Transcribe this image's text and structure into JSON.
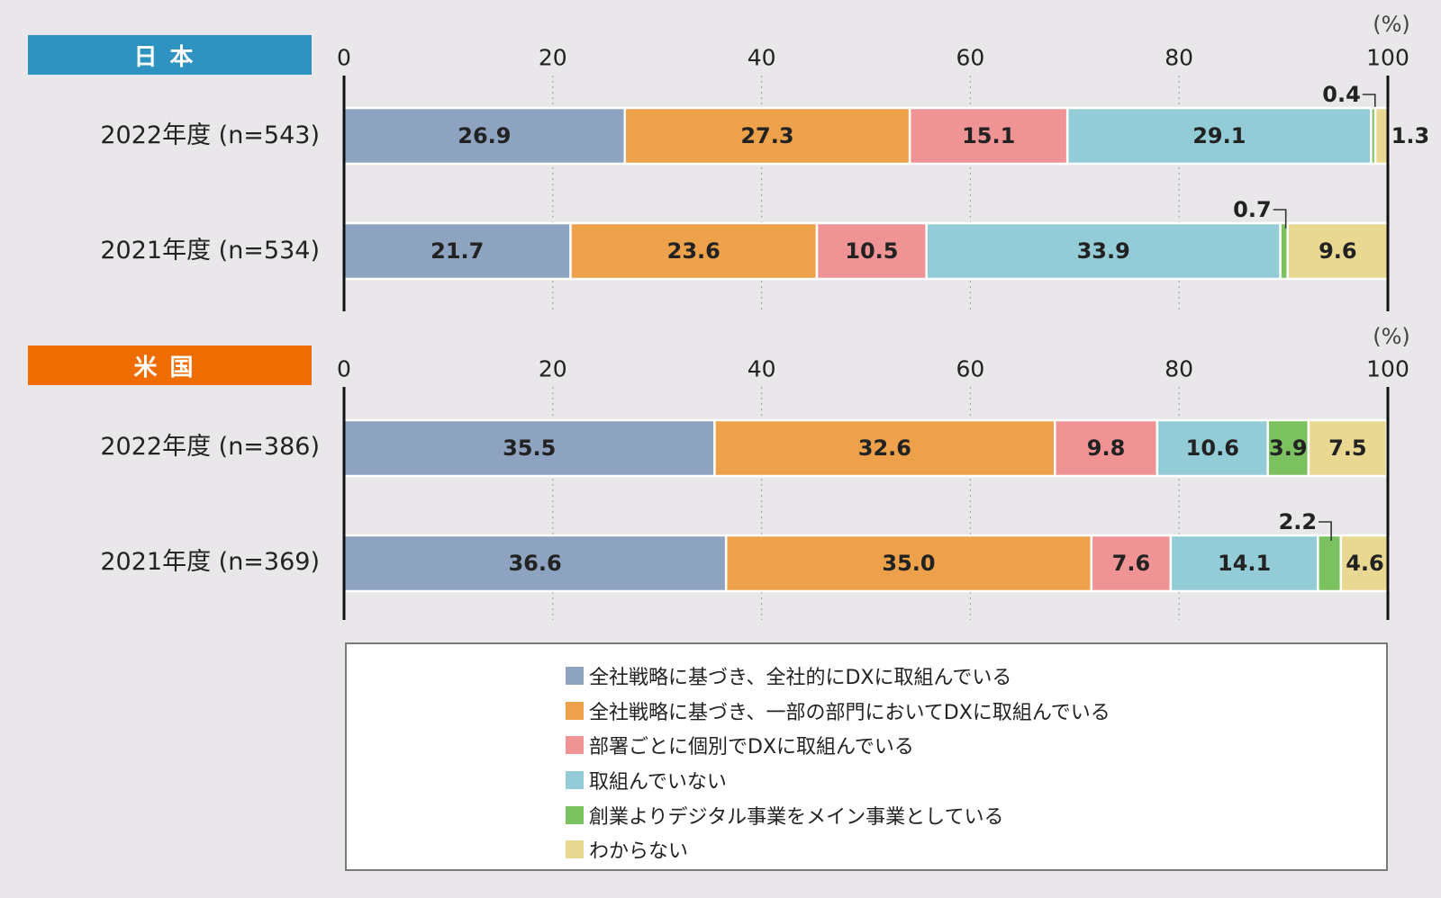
{
  "unit_label": "(%)",
  "colors": {
    "japan_badge": "#2e93c0",
    "us_badge": "#ee6c00"
  },
  "chart_data": [
    {
      "type": "bar",
      "orientation": "horizontal",
      "stacked": true,
      "panel_label": "日本",
      "categories": [
        "2022年度 (n=543)",
        "2021年度 (n=534)"
      ],
      "xlim": [
        0,
        100
      ],
      "xticks": [
        "0",
        "20",
        "40",
        "60",
        "80",
        "100"
      ],
      "grid": true,
      "series": [
        {
          "name": "全社戦略に基づき、全社的にDXに取組んでいる",
          "color": "#8ea3c0",
          "values": [
            26.9,
            21.7
          ],
          "labels": [
            "26.9",
            "21.7"
          ]
        },
        {
          "name": "全社戦略に基づき、一部の部門においてDXに取組んでいる",
          "color": "#eca14a",
          "values": [
            27.3,
            23.6
          ],
          "labels": [
            "27.3",
            "23.6"
          ]
        },
        {
          "name": "部署ごとに個別でDXに取組んでいる",
          "color": "#f09394",
          "values": [
            15.1,
            10.5
          ],
          "labels": [
            "15.1",
            "10.5"
          ]
        },
        {
          "name": "取組んでいない",
          "color": "#93ccd7",
          "values": [
            29.1,
            33.9
          ],
          "labels": [
            "29.1",
            "33.9"
          ]
        },
        {
          "name": "創業よりデジタル事業をメイン事業としている",
          "color": "#7bc15f",
          "values": [
            0.4,
            0.7
          ],
          "labels": [
            "0.4",
            "0.7"
          ]
        },
        {
          "name": "わからない",
          "color": "#e9d892",
          "values": [
            1.3,
            9.6
          ],
          "labels": [
            "1.3",
            "9.6"
          ]
        }
      ]
    },
    {
      "type": "bar",
      "orientation": "horizontal",
      "stacked": true,
      "panel_label": "米国",
      "categories": [
        "2022年度 (n=386)",
        "2021年度 (n=369)"
      ],
      "xlim": [
        0,
        100
      ],
      "xticks": [
        "0",
        "20",
        "40",
        "60",
        "80",
        "100"
      ],
      "grid": true,
      "series": [
        {
          "name": "全社戦略に基づき、全社的にDXに取組んでいる",
          "color": "#8ea3c0",
          "values": [
            35.5,
            36.6
          ],
          "labels": [
            "35.5",
            "36.6"
          ]
        },
        {
          "name": "全社戦略に基づき、一部の部門においてDXに取組んでいる",
          "color": "#eca14a",
          "values": [
            32.6,
            35.0
          ],
          "labels": [
            "32.6",
            "35.0"
          ]
        },
        {
          "name": "部署ごとに個別でDXに取組んでいる",
          "color": "#f09394",
          "values": [
            9.8,
            7.6
          ],
          "labels": [
            "9.8",
            "7.6"
          ]
        },
        {
          "name": "取組んでいない",
          "color": "#93ccd7",
          "values": [
            10.6,
            14.1
          ],
          "labels": [
            "10.6",
            "14.1"
          ]
        },
        {
          "name": "創業よりデジタル事業をメイン事業としている",
          "color": "#7bc15f",
          "values": [
            3.9,
            2.2
          ],
          "labels": [
            "3.9",
            "2.2"
          ]
        },
        {
          "name": "わからない",
          "color": "#e9d892",
          "values": [
            7.5,
            4.6
          ],
          "labels": [
            "7.5",
            "4.6"
          ]
        }
      ]
    }
  ],
  "legend": [
    {
      "label": "全社戦略に基づき、全社的にDXに取組んでいる",
      "color": "#8ea3c0"
    },
    {
      "label": "全社戦略に基づき、一部の部門においてDXに取組んでいる",
      "color": "#eca14a"
    },
    {
      "label": "部署ごとに個別でDXに取組んでいる",
      "color": "#f09394"
    },
    {
      "label": "取組んでいない",
      "color": "#93ccd7"
    },
    {
      "label": "創業よりデジタル事業をメイン事業としている",
      "color": "#7bc15f"
    },
    {
      "label": "わからない",
      "color": "#e9d892"
    }
  ]
}
